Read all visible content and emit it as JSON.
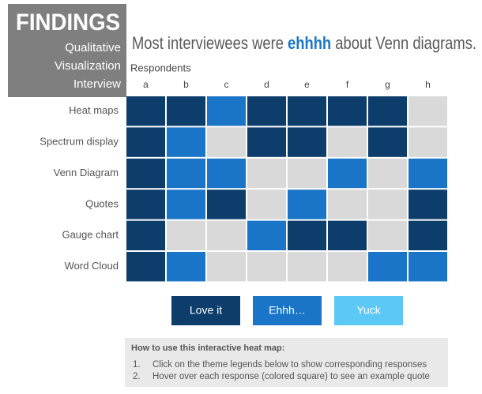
{
  "sidebar": {
    "heading": "FINDINGS",
    "lines": [
      "Qualitative",
      "Visualization",
      "Interview"
    ]
  },
  "title": {
    "parts": [
      "Most interviewees were ",
      "ehhhh",
      " about Venn diagrams."
    ]
  },
  "heatmap": {
    "column_title": "Respondents",
    "columns": [
      "a",
      "b",
      "c",
      "d",
      "e",
      "f",
      "g",
      "h"
    ],
    "rows": [
      "Heat maps",
      "Spectrum display",
      "Venn Diagram",
      "Quotes",
      "Gauge chart",
      "Word Cloud"
    ],
    "levels": [
      {
        "label": "Love it",
        "color": "#0d3d6b"
      },
      {
        "label": "Ehhh…",
        "color": "#1a75c8"
      },
      {
        "label": "Yuck",
        "color": "#5cc8f5"
      }
    ],
    "empty_color": "#d9d9d9",
    "cells": [
      [
        0,
        0,
        1,
        0,
        0,
        0,
        0,
        null
      ],
      [
        0,
        1,
        null,
        0,
        0,
        null,
        0,
        null
      ],
      [
        0,
        1,
        1,
        null,
        null,
        1,
        null,
        1
      ],
      [
        0,
        1,
        0,
        null,
        1,
        null,
        null,
        0
      ],
      [
        0,
        null,
        null,
        1,
        0,
        0,
        null,
        0
      ],
      [
        0,
        1,
        null,
        null,
        null,
        null,
        1,
        1
      ]
    ]
  },
  "instructions": {
    "title": "How to use this interactive heat map:",
    "items": [
      {
        "number": "1.",
        "text": "Click on the theme legends below to show corresponding responses"
      },
      {
        "number": "2.",
        "text": "Hover over each response (colored square) to see an example quote"
      }
    ]
  }
}
